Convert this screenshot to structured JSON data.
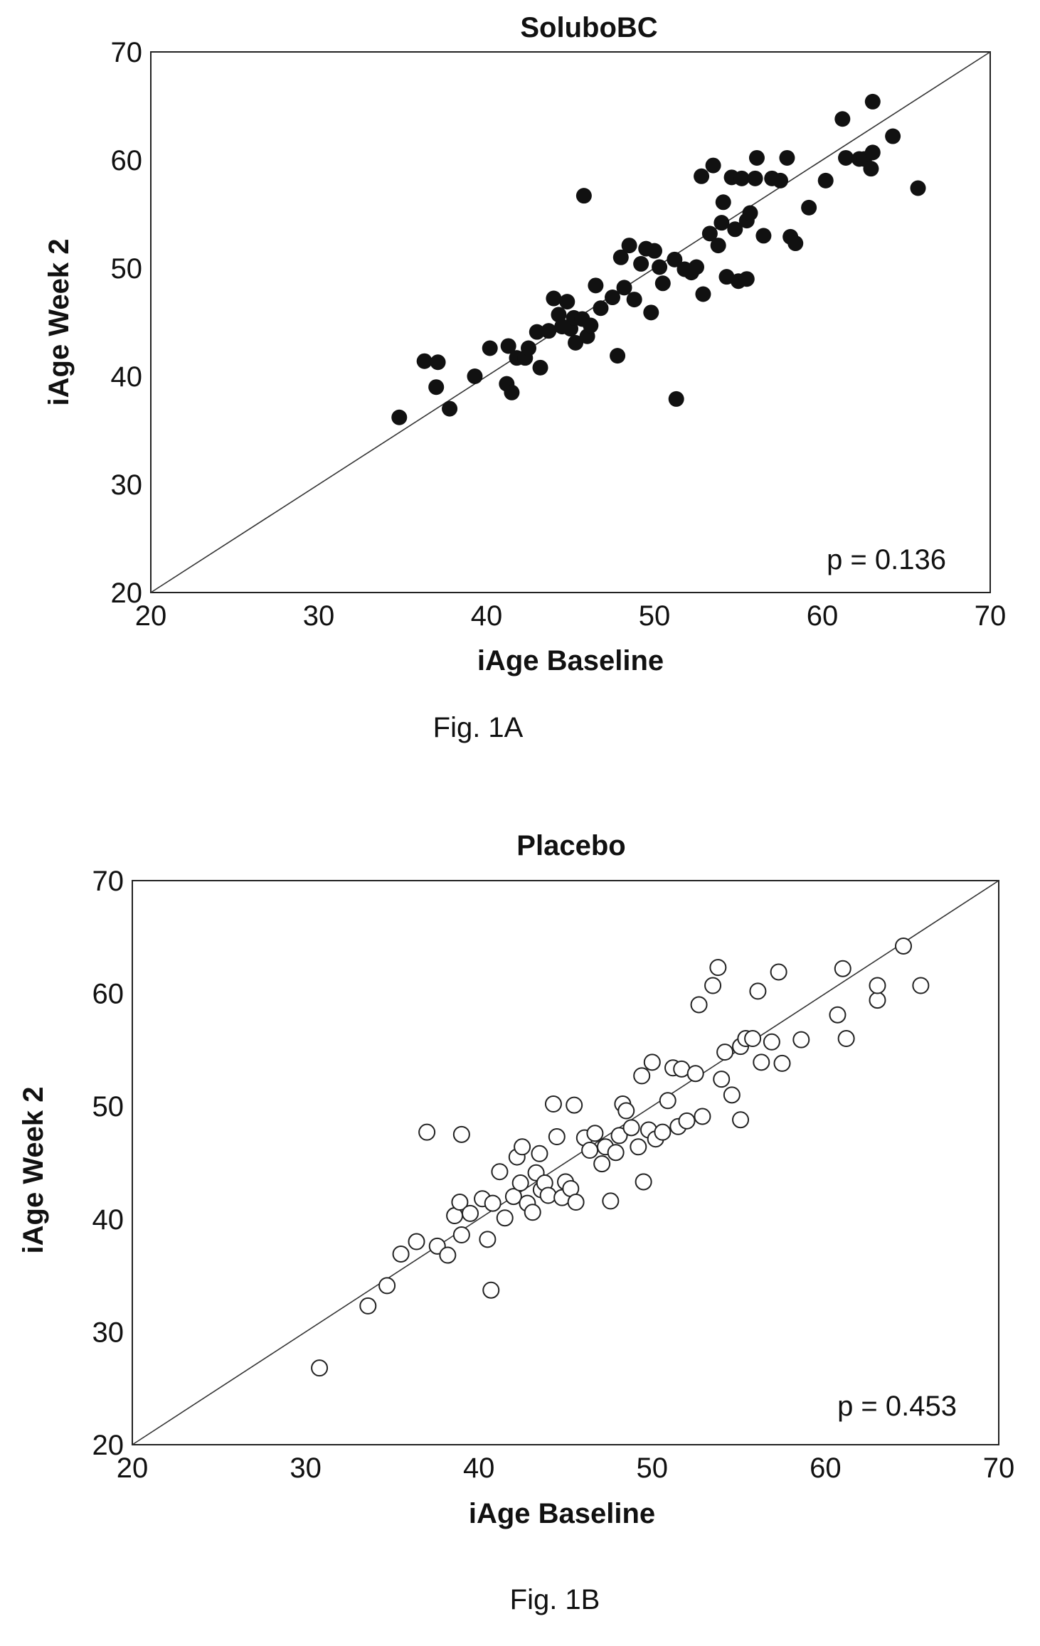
{
  "chart_data": [
    {
      "type": "scatter",
      "title": "SoluboBC",
      "xlabel": "iAge Baseline",
      "ylabel": "iAge Week 2",
      "xlim": [
        20,
        70
      ],
      "ylim": [
        20,
        70
      ],
      "xticks": [
        "20",
        "30",
        "40",
        "50",
        "60",
        "70"
      ],
      "yticks": [
        "20",
        "30",
        "40",
        "50",
        "60",
        "70"
      ],
      "marker": "filled",
      "marker_color": "#111111",
      "reference_line": "identity",
      "annotation": "p = 0.136",
      "caption": "Fig. 1A",
      "points": [
        [
          34.8,
          36.2
        ],
        [
          36.3,
          41.4
        ],
        [
          37.1,
          41.3
        ],
        [
          37.0,
          39.0
        ],
        [
          37.8,
          37.0
        ],
        [
          39.3,
          40.0
        ],
        [
          40.2,
          42.6
        ],
        [
          41.2,
          39.3
        ],
        [
          41.5,
          38.5
        ],
        [
          41.3,
          42.8
        ],
        [
          41.8,
          41.7
        ],
        [
          42.3,
          41.7
        ],
        [
          42.5,
          42.6
        ],
        [
          43.0,
          44.1
        ],
        [
          43.2,
          40.8
        ],
        [
          43.7,
          44.2
        ],
        [
          44.0,
          47.2
        ],
        [
          44.3,
          45.7
        ],
        [
          44.5,
          44.6
        ],
        [
          44.8,
          46.9
        ],
        [
          45.0,
          44.4
        ],
        [
          45.2,
          45.4
        ],
        [
          45.3,
          43.1
        ],
        [
          45.7,
          45.3
        ],
        [
          45.8,
          56.7
        ],
        [
          46.0,
          43.7
        ],
        [
          46.2,
          44.7
        ],
        [
          46.5,
          48.4
        ],
        [
          46.8,
          46.3
        ],
        [
          47.5,
          47.3
        ],
        [
          47.8,
          41.9
        ],
        [
          48.0,
          51.0
        ],
        [
          48.2,
          48.2
        ],
        [
          48.5,
          52.1
        ],
        [
          48.8,
          47.1
        ],
        [
          49.2,
          50.4
        ],
        [
          49.5,
          51.8
        ],
        [
          49.8,
          45.9
        ],
        [
          50.0,
          51.6
        ],
        [
          50.3,
          50.1
        ],
        [
          50.5,
          48.6
        ],
        [
          51.2,
          50.8
        ],
        [
          51.3,
          37.9
        ],
        [
          51.8,
          49.9
        ],
        [
          52.2,
          49.6
        ],
        [
          52.5,
          50.1
        ],
        [
          52.8,
          58.5
        ],
        [
          52.9,
          47.6
        ],
        [
          53.3,
          53.2
        ],
        [
          53.5,
          59.5
        ],
        [
          53.8,
          52.1
        ],
        [
          54.0,
          54.2
        ],
        [
          54.1,
          56.1
        ],
        [
          54.3,
          49.2
        ],
        [
          54.6,
          58.4
        ],
        [
          54.8,
          53.6
        ],
        [
          55.0,
          48.8
        ],
        [
          55.2,
          58.3
        ],
        [
          55.5,
          54.4
        ],
        [
          55.7,
          55.1
        ],
        [
          55.5,
          49.0
        ],
        [
          56.0,
          58.3
        ],
        [
          56.1,
          60.2
        ],
        [
          56.5,
          53.0
        ],
        [
          57.0,
          58.3
        ],
        [
          57.5,
          58.1
        ],
        [
          57.9,
          60.2
        ],
        [
          58.1,
          52.9
        ],
        [
          58.4,
          52.3
        ],
        [
          59.2,
          55.6
        ],
        [
          60.2,
          58.1
        ],
        [
          61.2,
          63.8
        ],
        [
          61.4,
          60.2
        ],
        [
          62.2,
          60.1
        ],
        [
          62.5,
          60.1
        ],
        [
          62.9,
          59.2
        ],
        [
          63.0,
          60.7
        ],
        [
          63.0,
          65.4
        ],
        [
          64.2,
          62.2
        ],
        [
          65.7,
          57.4
        ]
      ]
    },
    {
      "type": "scatter",
      "title": "Placebo",
      "xlabel": "iAge Baseline",
      "ylabel": "iAge Week 2",
      "xlim": [
        20,
        70
      ],
      "ylim": [
        20,
        70
      ],
      "xticks": [
        "20",
        "30",
        "40",
        "50",
        "60",
        "70"
      ],
      "yticks": [
        "20",
        "30",
        "40",
        "50",
        "60",
        "70"
      ],
      "marker": "hollow",
      "marker_color": "#222222",
      "reference_line": "identity",
      "annotation": "p = 0.453",
      "caption": "Fig. 1B",
      "points": [
        [
          30.8,
          26.8
        ],
        [
          33.6,
          32.3
        ],
        [
          34.7,
          34.1
        ],
        [
          35.5,
          36.9
        ],
        [
          36.4,
          38.0
        ],
        [
          37.0,
          47.7
        ],
        [
          37.6,
          37.6
        ],
        [
          38.2,
          36.8
        ],
        [
          38.6,
          40.3
        ],
        [
          38.9,
          41.5
        ],
        [
          39.0,
          38.6
        ],
        [
          39.0,
          47.5
        ],
        [
          39.5,
          40.5
        ],
        [
          40.2,
          41.8
        ],
        [
          40.5,
          38.2
        ],
        [
          40.7,
          33.7
        ],
        [
          40.8,
          41.4
        ],
        [
          41.2,
          44.2
        ],
        [
          41.5,
          40.1
        ],
        [
          42.0,
          42.0
        ],
        [
          42.2,
          45.5
        ],
        [
          42.4,
          43.2
        ],
        [
          42.5,
          46.4
        ],
        [
          42.8,
          41.4
        ],
        [
          43.1,
          40.6
        ],
        [
          43.3,
          44.1
        ],
        [
          43.5,
          45.8
        ],
        [
          43.6,
          42.6
        ],
        [
          43.8,
          43.2
        ],
        [
          44.0,
          42.1
        ],
        [
          44.3,
          50.2
        ],
        [
          44.5,
          47.3
        ],
        [
          44.8,
          41.9
        ],
        [
          45.0,
          43.3
        ],
        [
          45.3,
          42.7
        ],
        [
          45.5,
          50.1
        ],
        [
          45.6,
          41.5
        ],
        [
          46.1,
          47.2
        ],
        [
          46.4,
          46.1
        ],
        [
          46.7,
          47.6
        ],
        [
          47.1,
          44.9
        ],
        [
          47.3,
          46.4
        ],
        [
          47.6,
          41.6
        ],
        [
          47.9,
          45.9
        ],
        [
          48.1,
          47.4
        ],
        [
          48.3,
          50.2
        ],
        [
          48.5,
          49.6
        ],
        [
          48.8,
          48.1
        ],
        [
          49.2,
          46.4
        ],
        [
          49.4,
          52.7
        ],
        [
          49.5,
          43.3
        ],
        [
          49.8,
          47.9
        ],
        [
          50.0,
          53.9
        ],
        [
          50.2,
          47.1
        ],
        [
          50.6,
          47.7
        ],
        [
          50.9,
          50.5
        ],
        [
          51.2,
          53.4
        ],
        [
          51.5,
          48.2
        ],
        [
          51.7,
          53.3
        ],
        [
          52.0,
          48.7
        ],
        [
          52.5,
          52.9
        ],
        [
          52.7,
          59.0
        ],
        [
          52.9,
          49.1
        ],
        [
          53.5,
          60.7
        ],
        [
          53.8,
          62.3
        ],
        [
          54.0,
          52.4
        ],
        [
          54.2,
          54.8
        ],
        [
          54.6,
          51.0
        ],
        [
          55.1,
          55.3
        ],
        [
          55.1,
          48.8
        ],
        [
          55.4,
          56.0
        ],
        [
          55.8,
          56.0
        ],
        [
          56.1,
          60.2
        ],
        [
          56.3,
          53.9
        ],
        [
          56.9,
          55.7
        ],
        [
          57.3,
          61.9
        ],
        [
          57.5,
          53.8
        ],
        [
          58.6,
          55.9
        ],
        [
          60.7,
          58.1
        ],
        [
          61.0,
          62.2
        ],
        [
          61.2,
          56.0
        ],
        [
          63.0,
          59.4
        ],
        [
          63.0,
          60.7
        ],
        [
          64.5,
          64.2
        ],
        [
          65.5,
          60.7
        ]
      ]
    }
  ]
}
